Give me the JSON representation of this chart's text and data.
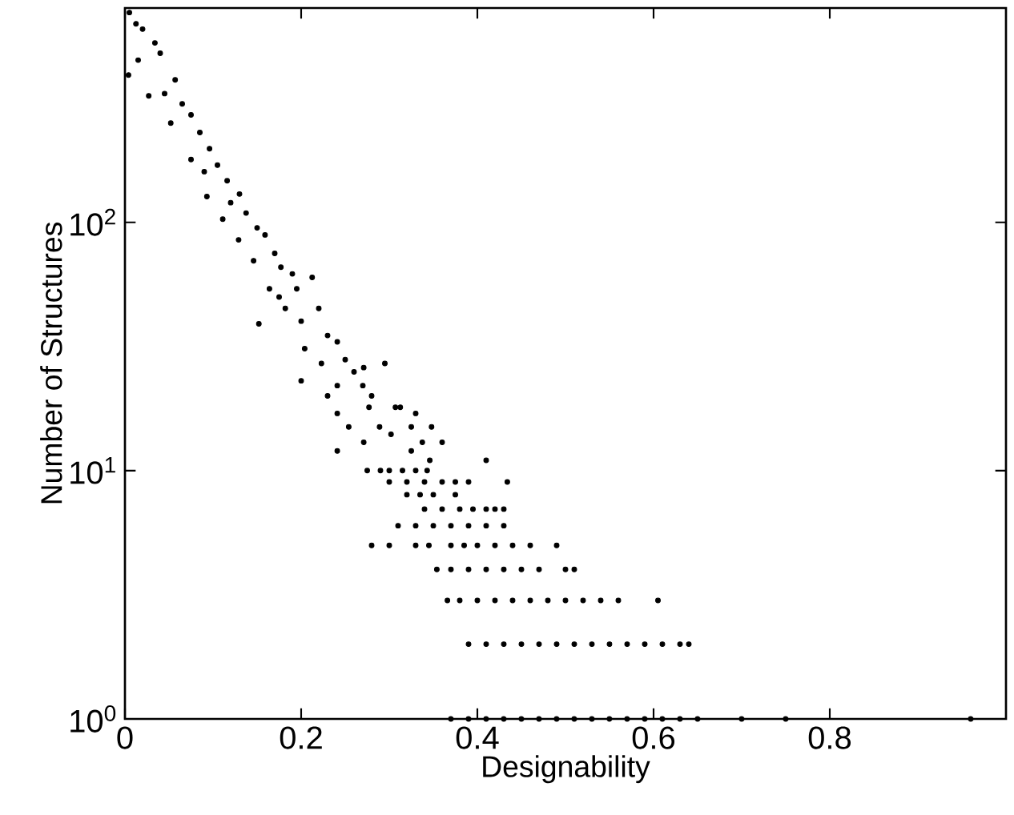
{
  "chart_data": {
    "type": "scatter",
    "xlabel": "Designability",
    "ylabel": "Number of Structures",
    "log": "y",
    "marker": "circle",
    "xlim": [
      0,
      1
    ],
    "ylim": [
      1,
      730
    ],
    "xticks": [
      0,
      0.2,
      0.4,
      0.6,
      0.8
    ],
    "yticks": [
      {
        "value": 1,
        "label": "10$^{0}$"
      },
      {
        "value": 10,
        "label": "10$^{1}$"
      },
      {
        "value": 100,
        "label": "10$^{2}$"
      }
    ],
    "series": [
      {
        "color": "#000000",
        "x": [
          0.0125,
          0.034,
          0.057,
          0.075,
          0.096,
          0.116,
          0.1375,
          0.159,
          0.177,
          0.195,
          0.2125,
          0.241,
          0.271,
          0.295,
          0.307,
          0.004,
          0.027,
          0.052,
          0.075,
          0.093,
          0.111,
          0.129,
          0.146,
          0.164,
          0.152,
          0.182,
          0.204,
          0.223,
          0.2,
          0.241,
          0.005,
          0.02,
          0.015,
          0.04,
          0.045,
          0.065,
          0.085,
          0.09,
          0.105,
          0.12,
          0.13,
          0.15,
          0.17,
          0.175,
          0.19,
          0.2,
          0.22,
          0.23,
          0.25,
          0.26,
          0.27,
          0.28,
          0.23,
          0.241,
          0.277,
          0.3125,
          0.33,
          0.254,
          0.289,
          0.325,
          0.348,
          0.241,
          0.271,
          0.302,
          0.3375,
          0.36,
          0.325,
          0.346,
          0.41,
          0.275,
          0.29,
          0.3,
          0.315,
          0.33,
          0.343,
          0.3,
          0.32,
          0.34,
          0.36,
          0.375,
          0.39,
          0.434,
          0.32,
          0.335,
          0.35,
          0.375,
          0.34,
          0.36,
          0.38,
          0.395,
          0.41,
          0.42,
          0.43,
          0.31,
          0.33,
          0.35,
          0.37,
          0.39,
          0.41,
          0.43,
          0.28,
          0.3,
          0.33,
          0.345,
          0.37,
          0.385,
          0.4,
          0.42,
          0.44,
          0.46,
          0.49,
          0.354,
          0.37,
          0.39,
          0.41,
          0.43,
          0.45,
          0.47,
          0.5,
          0.51,
          0.366,
          0.38,
          0.4,
          0.42,
          0.44,
          0.46,
          0.48,
          0.5,
          0.52,
          0.54,
          0.56,
          0.605,
          0.39,
          0.41,
          0.43,
          0.45,
          0.47,
          0.49,
          0.51,
          0.53,
          0.55,
          0.57,
          0.59,
          0.61,
          0.63,
          0.64,
          0.37,
          0.39,
          0.41,
          0.43,
          0.45,
          0.47,
          0.49,
          0.51,
          0.53,
          0.55,
          0.57,
          0.59,
          0.61,
          0.63,
          0.65,
          0.7,
          0.75,
          0.96
        ],
        "values": [
          630,
          528,
          375,
          271,
          198,
          147,
          109,
          89,
          66,
          54,
          60,
          33,
          26,
          27,
          18,
          392,
          323,
          251,
          179,
          127,
          103,
          85,
          70,
          54,
          39,
          45,
          31,
          27,
          23,
          22,
          700,
          600,
          450,
          480,
          330,
          300,
          230,
          160,
          170,
          120,
          130,
          95,
          75,
          50,
          62,
          40,
          45,
          35,
          28,
          25,
          22,
          20,
          20,
          17,
          18,
          18,
          17,
          15,
          15,
          15,
          15,
          12,
          13,
          14,
          13,
          13,
          12,
          11,
          11,
          10,
          10,
          10,
          10,
          10,
          10,
          9,
          9,
          9,
          9,
          9,
          9,
          9,
          8,
          8,
          8,
          8,
          7,
          7,
          7,
          7,
          7,
          7,
          7,
          6,
          6,
          6,
          6,
          6,
          6,
          6,
          5,
          5,
          5,
          5,
          5,
          5,
          5,
          5,
          5,
          5,
          5,
          4,
          4,
          4,
          4,
          4,
          4,
          4,
          4,
          4,
          3,
          3,
          3,
          3,
          3,
          3,
          3,
          3,
          3,
          3,
          3,
          3,
          2,
          2,
          2,
          2,
          2,
          2,
          2,
          2,
          2,
          2,
          2,
          2,
          2,
          2,
          1,
          1,
          1,
          1,
          1,
          1,
          1,
          1,
          1,
          1,
          1,
          1,
          1,
          1,
          1,
          1,
          1,
          1
        ]
      }
    ]
  }
}
